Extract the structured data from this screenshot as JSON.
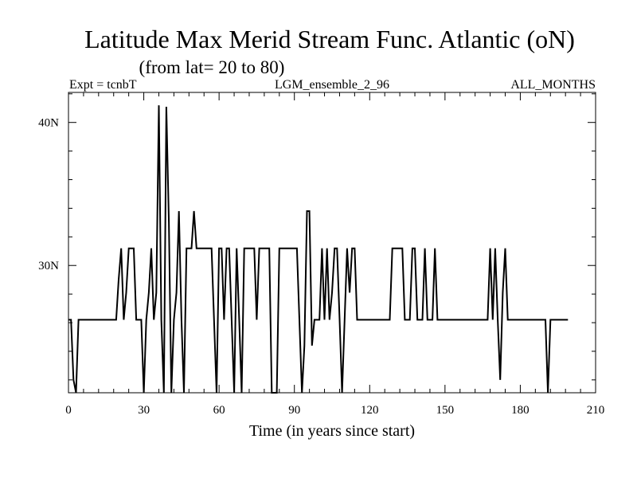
{
  "chart_data": {
    "type": "line",
    "title": "Latitude Max Merid Stream Func. Atlantic (oN)",
    "subtitle": "(from lat= 20 to 80)",
    "header_left": "Expt = tcnbT",
    "header_center": "LGM_ensemble_2_96",
    "header_right": "ALL_MONTHS",
    "xlabel": "Time (in years since start)",
    "ylabel": "",
    "xlim": [
      0,
      210
    ],
    "ylim": [
      21.1,
      42.1
    ],
    "x_ticks": [
      0,
      30,
      60,
      90,
      120,
      150,
      180,
      210
    ],
    "y_ticks": [
      {
        "value": 30,
        "label": "30N"
      },
      {
        "value": 40,
        "label": "40N"
      }
    ],
    "grid": false,
    "series": [
      {
        "values": [
          [
            0,
            26.2
          ],
          [
            1,
            26.2
          ],
          [
            2,
            22
          ],
          [
            3,
            21.1
          ],
          [
            4,
            26.2
          ],
          [
            19,
            26.2
          ],
          [
            20,
            29
          ],
          [
            21,
            31.2
          ],
          [
            22,
            26.2
          ],
          [
            23,
            28.1
          ],
          [
            24,
            31.2
          ],
          [
            26,
            31.2
          ],
          [
            27,
            26.2
          ],
          [
            29,
            26.2
          ],
          [
            30,
            21.1
          ],
          [
            31,
            26.2
          ],
          [
            32,
            28.1
          ],
          [
            33,
            31.2
          ],
          [
            34,
            26.2
          ],
          [
            35,
            28.1
          ],
          [
            36,
            41.2
          ],
          [
            37,
            26.2
          ],
          [
            38,
            21.1
          ],
          [
            39,
            41.1
          ],
          [
            40,
            33
          ],
          [
            41,
            21.1
          ],
          [
            42,
            26.2
          ],
          [
            43,
            28.1
          ],
          [
            44,
            33.8
          ],
          [
            45,
            26.2
          ],
          [
            46,
            21.1
          ],
          [
            47,
            31.2
          ],
          [
            49,
            31.2
          ],
          [
            50,
            33.8
          ],
          [
            51,
            31.2
          ],
          [
            57,
            31.2
          ],
          [
            58,
            26.2
          ],
          [
            59,
            21.1
          ],
          [
            60,
            31.2
          ],
          [
            61,
            31.2
          ],
          [
            62,
            26.2
          ],
          [
            63,
            31.2
          ],
          [
            64,
            31.2
          ],
          [
            65,
            26.2
          ],
          [
            66,
            21.1
          ],
          [
            67,
            31.2
          ],
          [
            68,
            26.2
          ],
          [
            69,
            21.1
          ],
          [
            70,
            31.2
          ],
          [
            74,
            31.2
          ],
          [
            75,
            26.2
          ],
          [
            76,
            31.2
          ],
          [
            80,
            31.2
          ],
          [
            81,
            21.1
          ],
          [
            83,
            21.1
          ],
          [
            84,
            31.2
          ],
          [
            91,
            31.2
          ],
          [
            92,
            26.2
          ],
          [
            93,
            21.1
          ],
          [
            94,
            24.4
          ],
          [
            95,
            33.8
          ],
          [
            96,
            33.8
          ],
          [
            97,
            24.4
          ],
          [
            98,
            26.2
          ],
          [
            100,
            26.2
          ],
          [
            101,
            31.2
          ],
          [
            102,
            26.2
          ],
          [
            103,
            31.2
          ],
          [
            104,
            26.2
          ],
          [
            105,
            28.1
          ],
          [
            106,
            31.2
          ],
          [
            107,
            31.2
          ],
          [
            108,
            26.2
          ],
          [
            109,
            21.1
          ],
          [
            110,
            26.2
          ],
          [
            111,
            31.2
          ],
          [
            112,
            28.1
          ],
          [
            113,
            31.2
          ],
          [
            114,
            31.2
          ],
          [
            115,
            26.2
          ],
          [
            128,
            26.2
          ],
          [
            129,
            31.2
          ],
          [
            133,
            31.2
          ],
          [
            134,
            26.2
          ],
          [
            136,
            26.2
          ],
          [
            137,
            31.2
          ],
          [
            138,
            31.2
          ],
          [
            139,
            26.2
          ],
          [
            141,
            26.2
          ],
          [
            142,
            31.2
          ],
          [
            143,
            26.2
          ],
          [
            145,
            26.2
          ],
          [
            146,
            31.2
          ],
          [
            147,
            26.2
          ],
          [
            167,
            26.2
          ],
          [
            168,
            31.2
          ],
          [
            169,
            26.2
          ],
          [
            170,
            31.2
          ],
          [
            171,
            26.2
          ],
          [
            172,
            22
          ],
          [
            173,
            28.1
          ],
          [
            174,
            31.2
          ],
          [
            175,
            26.2
          ],
          [
            190,
            26.2
          ],
          [
            191,
            21.1
          ],
          [
            192,
            26.2
          ],
          [
            199,
            26.2
          ]
        ]
      }
    ]
  }
}
